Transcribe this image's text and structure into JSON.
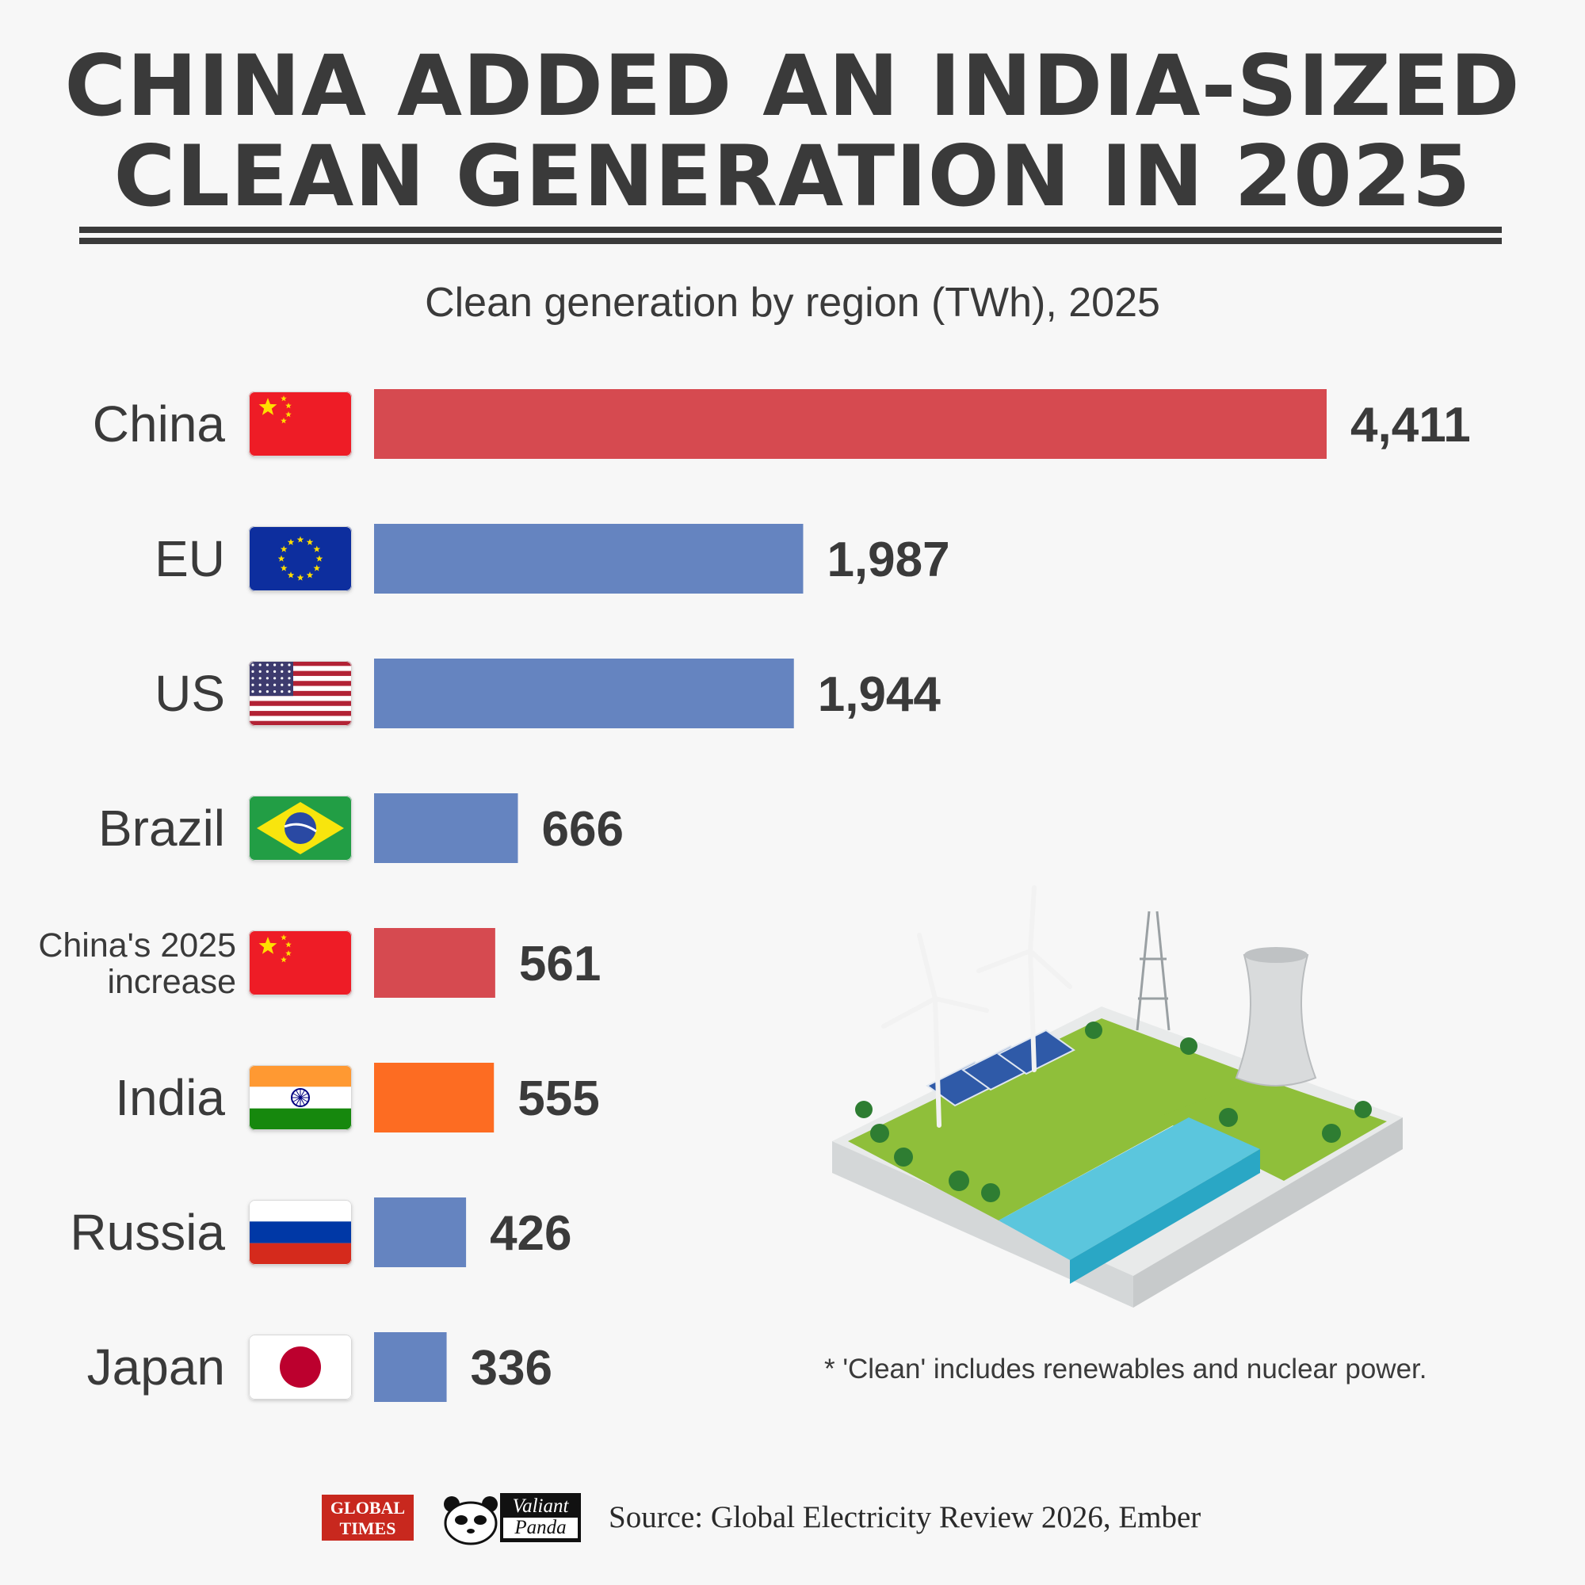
{
  "header": {
    "title_line1": "CHINA ADDED AN INDIA-SIZED",
    "title_line2": "CLEAN GENERATION IN 2025",
    "subtitle": "Clean generation by region (TWh), 2025"
  },
  "chart_data": {
    "type": "bar",
    "orientation": "horizontal",
    "title": "Clean generation by region (TWh), 2025",
    "xlabel": "",
    "ylabel": "",
    "grid": false,
    "categories": [
      "China",
      "EU",
      "US",
      "Brazil",
      "China's 2025 increase",
      "India",
      "Russia",
      "Japan"
    ],
    "values": [
      4411,
      1987,
      1944,
      666,
      561,
      555,
      426,
      336
    ],
    "value_labels": [
      "4,411",
      "1,987",
      "1,944",
      "666",
      "561",
      "555",
      "426",
      "336"
    ],
    "bar_colors": [
      "#d64a50",
      "#6584c0",
      "#6584c0",
      "#6584c0",
      "#d64a50",
      "#fd6c22",
      "#6584c0",
      "#6584c0"
    ],
    "flags": [
      "china-flag-icon",
      "eu-flag-icon",
      "us-flag-icon",
      "brazil-flag-icon",
      "china-flag-icon",
      "india-flag-icon",
      "russia-flag-icon",
      "japan-flag-icon"
    ]
  },
  "note": "* 'Clean' includes renewables and nuclear power.",
  "footer": {
    "logo1_line1": "GLOBAL",
    "logo1_line2": "TIMES",
    "logo2_line1": "Valiant",
    "logo2_line2": "Panda",
    "source": "Source: Global Electricity Review 2026, Ember"
  },
  "colors": {
    "text": "#3a3a3a",
    "china_red": "#d64a50",
    "blue": "#6584c0",
    "india_orange": "#fd6c22",
    "background": "#f7f7f7"
  }
}
